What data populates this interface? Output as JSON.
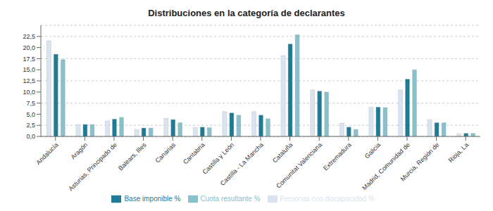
{
  "chart_data": {
    "type": "bar",
    "title": "Distribuciones en la categoría de declarantes",
    "categories": [
      "Andalucía",
      "Aragón",
      "Asturias, Principado de",
      "Balears, Illes",
      "Canarias",
      "Cantabria",
      "Castilla y León",
      "Castilla - La Mancha",
      "Cataluña",
      "Comunitat Valenciana",
      "Extremadura",
      "Galicia",
      "Madrid, Comunidad de",
      "Murcia, Región de",
      "Rioja, La"
    ],
    "series": [
      {
        "name": "Personas con discapacidad %",
        "color": "#d9e4f0",
        "values": [
          21.5,
          2.7,
          3.5,
          1.6,
          4.1,
          2.0,
          5.6,
          5.6,
          18.2,
          10.5,
          3.0,
          6.6,
          10.5,
          3.8,
          0.6
        ]
      },
      {
        "name": "Base imponible %",
        "color": "#1e7a96",
        "values": [
          18.5,
          2.7,
          3.9,
          1.9,
          3.8,
          2.1,
          5.3,
          4.8,
          20.8,
          10.2,
          2.1,
          6.6,
          12.9,
          3.1,
          0.7
        ]
      },
      {
        "name": "Cuota resultante %",
        "color": "#88c0cc",
        "values": [
          17.3,
          2.7,
          4.3,
          1.9,
          3.1,
          2.0,
          4.8,
          4.0,
          22.9,
          10.0,
          1.6,
          6.5,
          15.0,
          3.1,
          0.7
        ]
      }
    ],
    "ylim": [
      0,
      25
    ],
    "yticks": [
      {
        "value": 0.0,
        "label": "0,0"
      },
      {
        "value": 2.5,
        "label": "2,5"
      },
      {
        "value": 5.0,
        "label": "5,0"
      },
      {
        "value": 7.5,
        "label": "7,5"
      },
      {
        "value": 10.0,
        "label": "10,0"
      },
      {
        "value": 12.5,
        "label": "12,5"
      },
      {
        "value": 15.0,
        "label": "15,0"
      },
      {
        "value": 17.5,
        "label": "17,5"
      },
      {
        "value": 20.0,
        "label": "20,0"
      },
      {
        "value": 22.5,
        "label": "22,5"
      }
    ],
    "grid": true,
    "legend": "bottom"
  }
}
